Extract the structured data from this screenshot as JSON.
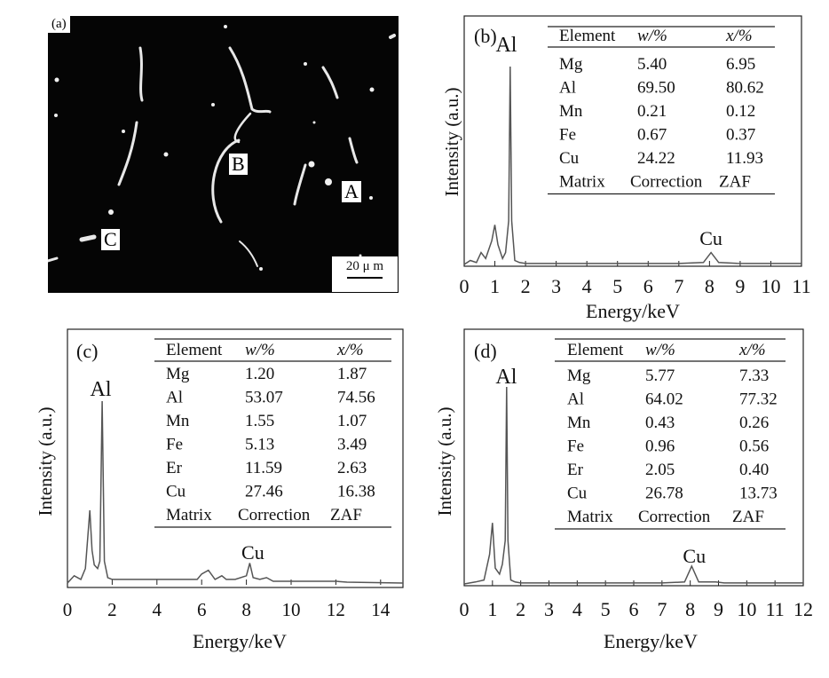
{
  "panel_a": {
    "label": "(a)",
    "points": {
      "A": "A",
      "B": "B",
      "C": "C"
    },
    "scale_label": "20 μ m"
  },
  "chart_data": [
    {
      "type": "line",
      "panel": "(b)",
      "xlabel": "Energy/keV",
      "ylabel": "Intensity (a.u.)",
      "xlim": [
        0,
        11
      ],
      "xticks": [
        "0",
        "1",
        "2",
        "3",
        "4",
        "5",
        "6",
        "7",
        "8",
        "9",
        "10",
        "11"
      ],
      "x": [
        0.0,
        0.2,
        0.4,
        0.55,
        0.7,
        0.9,
        1.0,
        1.1,
        1.25,
        1.35,
        1.45,
        1.5,
        1.55,
        1.65,
        1.8,
        2.0,
        3,
        4,
        5,
        6,
        7,
        7.8,
        8.05,
        8.3,
        8.9,
        9.2,
        10,
        11
      ],
      "y": [
        0,
        2,
        1,
        6,
        3,
        12,
        20,
        10,
        3,
        6,
        22,
        100,
        22,
        2,
        1,
        0.5,
        0.5,
        0.5,
        0.5,
        0.5,
        0.5,
        1,
        6,
        1,
        0.6,
        0.5,
        0.5,
        0.5
      ],
      "peaks": [
        {
          "label": "Al",
          "x": 1.49
        },
        {
          "label": "Cu",
          "x": 8.05
        }
      ],
      "table": {
        "headers": [
          "Element",
          "w/%",
          "x/%"
        ],
        "rows": [
          [
            "Mg",
            "5.40",
            "6.95"
          ],
          [
            "Al",
            "69.50",
            "80.62"
          ],
          [
            "Mn",
            "0.21",
            "0.12"
          ],
          [
            "Fe",
            "0.67",
            "0.37"
          ],
          [
            "Cu",
            "24.22",
            "11.93"
          ]
        ],
        "footer": [
          "Matrix",
          "Correction",
          "ZAF"
        ]
      }
    },
    {
      "type": "line",
      "panel": "(c)",
      "xlabel": "Energy/keV",
      "ylabel": "Intensity (a.u.)",
      "xlim": [
        0,
        15
      ],
      "xticks": [
        "0",
        "2",
        "4",
        "6",
        "8",
        "10",
        "12",
        "14"
      ],
      "x": [
        0.0,
        0.3,
        0.6,
        0.8,
        1.0,
        1.1,
        1.2,
        1.35,
        1.45,
        1.55,
        1.65,
        1.8,
        2.0,
        4,
        5.8,
        6.0,
        6.3,
        6.6,
        6.9,
        7.1,
        7.5,
        8.0,
        8.15,
        8.3,
        8.6,
        8.9,
        9.2,
        10,
        12,
        12.5,
        15
      ],
      "y": [
        0,
        4,
        2,
        8,
        40,
        18,
        10,
        8,
        12,
        100,
        12,
        3,
        2,
        2,
        2,
        5,
        7,
        2,
        4,
        2,
        2,
        4,
        11,
        3,
        2,
        3,
        1,
        1,
        1,
        0.5,
        0
      ],
      "peaks": [
        {
          "label": "Al",
          "x": 1.49
        },
        {
          "label": "Cu",
          "x": 8.05
        }
      ],
      "table": {
        "headers": [
          "Element",
          "w/%",
          "x/%"
        ],
        "rows": [
          [
            "Mg",
            "1.20",
            "1.87"
          ],
          [
            "Al",
            "53.07",
            "74.56"
          ],
          [
            "Mn",
            "1.55",
            "1.07"
          ],
          [
            "Fe",
            "5.13",
            "3.49"
          ],
          [
            "Er",
            "11.59",
            "2.63"
          ],
          [
            "Cu",
            "27.46",
            "16.38"
          ]
        ],
        "footer": [
          "Matrix",
          "Correction",
          "ZAF"
        ]
      }
    },
    {
      "type": "line",
      "panel": "(d)",
      "xlabel": "Energy/keV",
      "ylabel": "Intensity (a.u.)",
      "xlim": [
        0,
        12
      ],
      "xticks": [
        "0",
        "1",
        "2",
        "3",
        "4",
        "5",
        "6",
        "7",
        "8",
        "9",
        "10",
        "11",
        "12"
      ],
      "x": [
        0.0,
        0.4,
        0.7,
        0.9,
        1.0,
        1.1,
        1.25,
        1.35,
        1.45,
        1.5,
        1.55,
        1.65,
        1.8,
        2.0,
        3,
        4,
        5,
        6,
        7,
        7.8,
        8.05,
        8.3,
        8.9,
        9.2,
        10,
        11,
        12
      ],
      "y": [
        0,
        1,
        2,
        15,
        31,
        8,
        5,
        10,
        22,
        100,
        22,
        2,
        1,
        0.5,
        0.5,
        0.5,
        0.5,
        0.5,
        0.5,
        1,
        9,
        1,
        1,
        0.5,
        0.5,
        0.5,
        0.5
      ],
      "peaks": [
        {
          "label": "Al",
          "x": 1.49
        },
        {
          "label": "Cu",
          "x": 8.05
        }
      ],
      "table": {
        "headers": [
          "Element",
          "w/%",
          "x/%"
        ],
        "rows": [
          [
            "Mg",
            "5.77",
            "7.33"
          ],
          [
            "Al",
            "64.02",
            "77.32"
          ],
          [
            "Mn",
            "0.43",
            "0.26"
          ],
          [
            "Fe",
            "0.96",
            "0.56"
          ],
          [
            "Er",
            "2.05",
            "0.40"
          ],
          [
            "Cu",
            "26.78",
            "13.73"
          ]
        ],
        "footer": [
          "Matrix",
          "Correction",
          "ZAF"
        ]
      }
    }
  ]
}
